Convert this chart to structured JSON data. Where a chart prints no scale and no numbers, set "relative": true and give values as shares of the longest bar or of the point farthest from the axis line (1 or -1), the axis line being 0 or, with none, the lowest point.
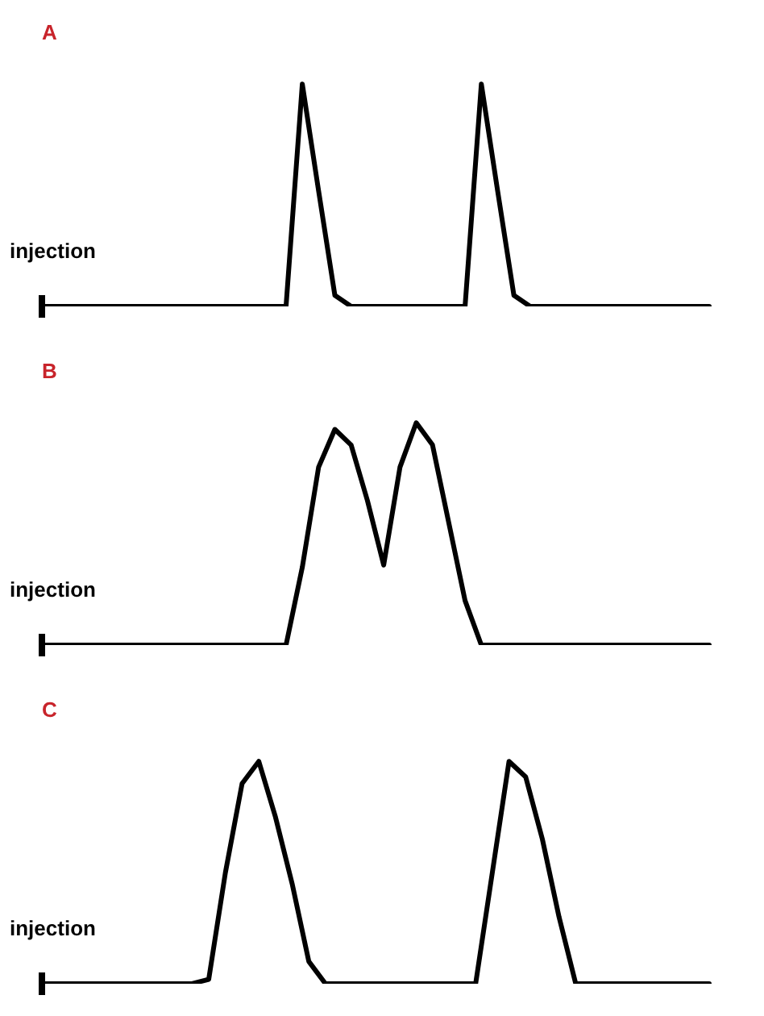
{
  "chart_data": [
    {
      "type": "line",
      "title": "A",
      "relative": true,
      "legend": false,
      "marker": "none",
      "categories": [
        null,
        null,
        null,
        null,
        null,
        null,
        null,
        null,
        null,
        null,
        null,
        null,
        null,
        null,
        null,
        null,
        null,
        null,
        null,
        null,
        null,
        null,
        null,
        null,
        null,
        null,
        null,
        null,
        null,
        null,
        null,
        null,
        null,
        null,
        null,
        null,
        null,
        null,
        null,
        null,
        null,
        null
      ],
      "series": [
        {
          "color": "#000000",
          "values": [
            0,
            0,
            0,
            0,
            0,
            0,
            0,
            0,
            0,
            0,
            0,
            0,
            0,
            0,
            0,
            0,
            1,
            0.52,
            0.05,
            0,
            0,
            0,
            0,
            0,
            0,
            0,
            0,
            1,
            0.52,
            0.05,
            0,
            0,
            0,
            0,
            0,
            0,
            0,
            0,
            0,
            0,
            0,
            0
          ]
        }
      ],
      "annotations": [
        {
          "text": "injection",
          "y": 0
        }
      ]
    },
    {
      "type": "line",
      "title": "B",
      "relative": true,
      "legend": false,
      "marker": "none",
      "categories": [
        null,
        null,
        null,
        null,
        null,
        null,
        null,
        null,
        null,
        null,
        null,
        null,
        null,
        null,
        null,
        null,
        null,
        null,
        null,
        null,
        null,
        null,
        null,
        null,
        null,
        null,
        null,
        null,
        null,
        null,
        null,
        null,
        null,
        null,
        null,
        null,
        null,
        null,
        null,
        null,
        null,
        null
      ],
      "series": [
        {
          "color": "#000000",
          "values": [
            0,
            0,
            0,
            0,
            0,
            0,
            0,
            0,
            0,
            0,
            0,
            0,
            0,
            0,
            0,
            0,
            0.35,
            0.8,
            0.97,
            0.9,
            0.65,
            0.36,
            0.8,
            1,
            0.9,
            0.55,
            0.2,
            0,
            0,
            0,
            0,
            0,
            0,
            0,
            0,
            0,
            0,
            0,
            0,
            0,
            0,
            0
          ]
        }
      ],
      "annotations": [
        {
          "text": "injection",
          "y": 0
        }
      ]
    },
    {
      "type": "line",
      "title": "C",
      "relative": true,
      "legend": false,
      "marker": "none",
      "categories": [
        null,
        null,
        null,
        null,
        null,
        null,
        null,
        null,
        null,
        null,
        null,
        null,
        null,
        null,
        null,
        null,
        null,
        null,
        null,
        null,
        null,
        null,
        null,
        null,
        null,
        null,
        null,
        null,
        null,
        null,
        null,
        null,
        null,
        null,
        null,
        null,
        null,
        null,
        null,
        null,
        null
      ],
      "series": [
        {
          "color": "#000000",
          "values": [
            0,
            0,
            0,
            0,
            0,
            0,
            0,
            0,
            0,
            0,
            0.02,
            0.5,
            0.9,
            1,
            0.75,
            0.45,
            0.1,
            0,
            0,
            0,
            0,
            0,
            0,
            0,
            0,
            0,
            0,
            0.5,
            1,
            0.93,
            0.65,
            0.3,
            0,
            0,
            0,
            0,
            0,
            0,
            0,
            0,
            0
          ]
        }
      ],
      "annotations": [
        {
          "text": "injection",
          "y": 0
        }
      ]
    }
  ]
}
